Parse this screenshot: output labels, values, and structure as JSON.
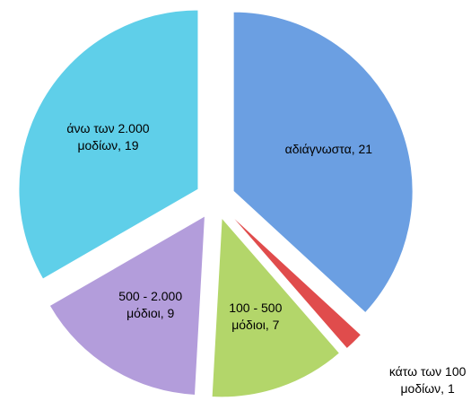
{
  "chart_data": {
    "type": "pie",
    "values": [
      21,
      1,
      7,
      9,
      19
    ],
    "value_labels": [
      "αδιάγνωστα, 21",
      "κάτω των 100\nμοδίων, 1",
      "100 - 500\nμόδιοι, 7",
      "500 - 2.000\nμόδιοι, 9",
      "άνω των 2.000\nμοδίων, 19"
    ],
    "colors": [
      "#6b9fe2",
      "#e04c4c",
      "#b3d66a",
      "#b39ddb",
      "#5fcfe9"
    ],
    "start_angle": 0,
    "direction": "clockwise",
    "exploded": true
  }
}
